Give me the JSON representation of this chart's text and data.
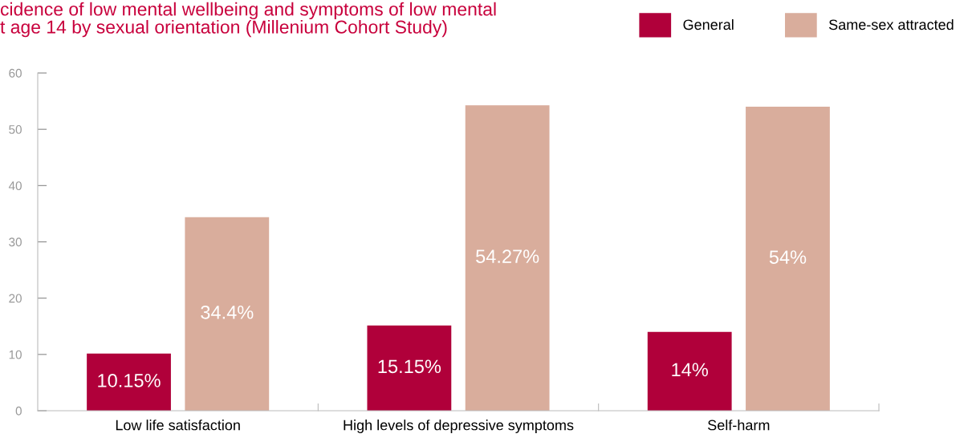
{
  "chart_data": {
    "type": "bar",
    "title": "cidence of low mental wellbeing and symptoms of low mental\nt age 14 by sexual orientation (Millenium Cohort Study)",
    "categories": [
      "Low life satisfaction",
      "High levels of depressive symptoms",
      "Self-harm"
    ],
    "series": [
      {
        "name": "General",
        "color": "#b0003a",
        "values": [
          10.15,
          15.15,
          14
        ],
        "value_labels": [
          "10.15%",
          "15.15%",
          "14%"
        ]
      },
      {
        "name": "Same-sex attracted",
        "color": "#d9ad9c",
        "values": [
          34.4,
          54.27,
          54
        ],
        "value_labels": [
          "34.4%",
          "54.27%",
          "54%"
        ]
      }
    ],
    "ylim": [
      0,
      60
    ],
    "yticks": [
      0,
      10,
      20,
      30,
      40,
      50,
      60
    ],
    "grid": false,
    "legend": "top right"
  }
}
